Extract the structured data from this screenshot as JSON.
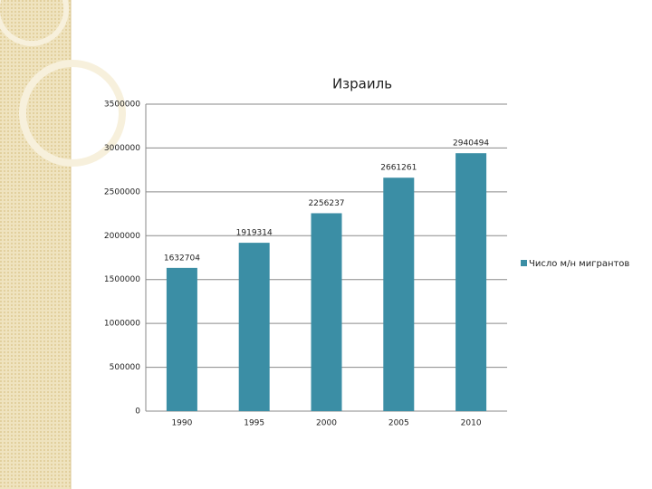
{
  "chart_data": {
    "type": "bar",
    "title": "Израиль",
    "categories": [
      "1990",
      "1995",
      "2000",
      "2005",
      "2010"
    ],
    "series": [
      {
        "name": "Число м/н мигрантов",
        "color": "#3b8ea5",
        "values": [
          1632704,
          1919314,
          2256237,
          2661261,
          2940494
        ]
      }
    ],
    "ylim": [
      0,
      3500000
    ],
    "yticks": [
      0,
      500000,
      1000000,
      1500000,
      2000000,
      2500000,
      3000000,
      3500000
    ],
    "grid": true,
    "legend": "right"
  }
}
